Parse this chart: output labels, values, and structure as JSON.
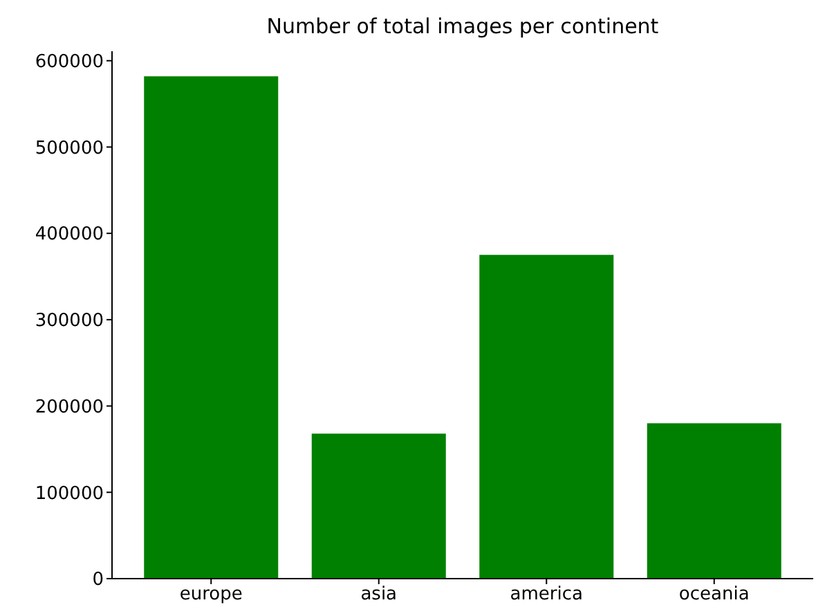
{
  "chart_data": {
    "type": "bar",
    "title": "Number of total images per continent",
    "categories": [
      "europe",
      "asia",
      "america",
      "oceania"
    ],
    "values": [
      582000,
      168000,
      375000,
      180000
    ],
    "color": "#008000",
    "ylim": [
      0,
      611000
    ],
    "yticks": [
      0,
      100000,
      200000,
      300000,
      400000,
      500000,
      600000
    ],
    "grid": false,
    "legend": false
  }
}
